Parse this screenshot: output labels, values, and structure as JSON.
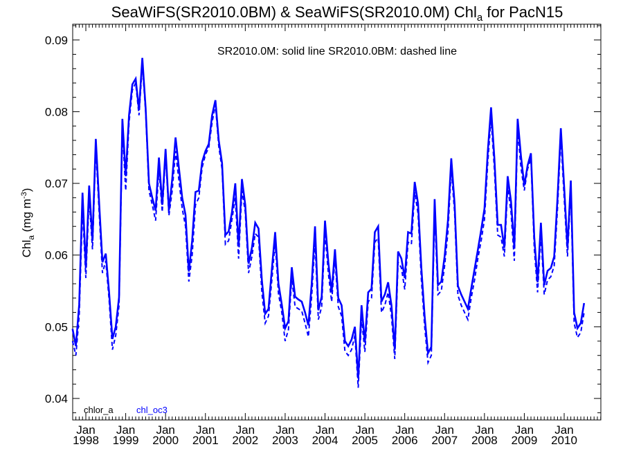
{
  "chart_data": {
    "type": "line",
    "title": "SeaWiFS(SR2010.0BM) & SeaWiFS(SR2010.0M)  Chl",
    "title_sub": "a",
    "title_suffix": " for PacN15",
    "annotation": "SR2010.0M: solid line   SR2010.0BM: dashed line",
    "ylabel": "Chl",
    "ylabel_sub": "a",
    "ylabel_units": " (mg m",
    "ylabel_sup": "-3",
    "ylabel_close": ")",
    "ylim": [
      0.037,
      0.0922
    ],
    "yticks": [
      "0.04",
      "0.05",
      "0.06",
      "0.07",
      "0.08",
      "0.09"
    ],
    "xlim": [
      1997.67,
      2010.92
    ],
    "xtick_month": "Jan",
    "xticks": [
      "1998",
      "1999",
      "2000",
      "2001",
      "2002",
      "2003",
      "2004",
      "2005",
      "2006",
      "2007",
      "2008",
      "2009",
      "2010"
    ],
    "legend": [
      "chlor_a",
      "chl_oc3"
    ],
    "legend_colors": [
      "#000000",
      "#0000ff"
    ],
    "line_color": "#0000ff",
    "x_start": "1997-09",
    "series": [
      {
        "name": "SR2010.0M",
        "style": "solid",
        "values": [
          0.0497,
          0.0473,
          0.0531,
          0.0687,
          0.0582,
          0.0697,
          0.062,
          0.0762,
          0.0673,
          0.059,
          0.0602,
          0.0548,
          0.0483,
          0.05,
          0.0541,
          0.079,
          0.071,
          0.0795,
          0.0838,
          0.0846,
          0.0802,
          0.0875,
          0.0805,
          0.07,
          0.068,
          0.0662,
          0.0736,
          0.067,
          0.0748,
          0.0662,
          0.0706,
          0.0764,
          0.0722,
          0.068,
          0.0656,
          0.0577,
          0.062,
          0.0688,
          0.069,
          0.073,
          0.0745,
          0.0755,
          0.0795,
          0.0816,
          0.076,
          0.0728,
          0.0628,
          0.0633,
          0.066,
          0.07,
          0.0612,
          0.0706,
          0.067,
          0.0588,
          0.061,
          0.0645,
          0.0637,
          0.0565,
          0.0518,
          0.0525,
          0.058,
          0.0632,
          0.056,
          0.0531,
          0.0498,
          0.0508,
          0.0583,
          0.0542,
          0.0538,
          0.0535,
          0.052,
          0.0502,
          0.056,
          0.064,
          0.0523,
          0.0542,
          0.0648,
          0.059,
          0.0548,
          0.0608,
          0.054,
          0.053,
          0.048,
          0.0473,
          0.0482,
          0.05,
          0.0428,
          0.053,
          0.0478,
          0.0548,
          0.0553,
          0.0632,
          0.064,
          0.0535,
          0.0545,
          0.0562,
          0.053,
          0.0468,
          0.0605,
          0.0595,
          0.0568,
          0.0632,
          0.063,
          0.0702,
          0.0672,
          0.0582,
          0.0514,
          0.0463,
          0.0472,
          0.0678,
          0.0558,
          0.0563,
          0.0598,
          0.0648,
          0.0735,
          0.0672,
          0.0557,
          0.0545,
          0.0535,
          0.0525,
          0.0553,
          0.058,
          0.0607,
          0.0635,
          0.0665,
          0.0745,
          0.0806,
          0.0735,
          0.0642,
          0.0642,
          0.061,
          0.071,
          0.0675,
          0.061,
          0.079,
          0.0738,
          0.0697,
          0.0725,
          0.0742,
          0.0625,
          0.0562,
          0.0645,
          0.0558,
          0.0578,
          0.0582,
          0.0598,
          0.068,
          0.0777,
          0.0695,
          0.061,
          0.0704,
          0.052,
          0.0498,
          0.0505,
          0.0533
        ]
      },
      {
        "name": "SR2010.0BM",
        "style": "dashed",
        "values": [
          0.048,
          0.046,
          0.0515,
          0.0665,
          0.0568,
          0.068,
          0.0608,
          0.075,
          0.066,
          0.0575,
          0.0592,
          0.0538,
          0.0468,
          0.0488,
          0.053,
          0.0775,
          0.069,
          0.0785,
          0.083,
          0.084,
          0.0795,
          0.0865,
          0.08,
          0.069,
          0.067,
          0.0648,
          0.072,
          0.066,
          0.074,
          0.0655,
          0.069,
          0.0745,
          0.0705,
          0.0665,
          0.064,
          0.0563,
          0.06,
          0.067,
          0.068,
          0.0722,
          0.074,
          0.075,
          0.0785,
          0.081,
          0.0752,
          0.072,
          0.0615,
          0.062,
          0.065,
          0.068,
          0.0595,
          0.069,
          0.066,
          0.0575,
          0.0598,
          0.063,
          0.0625,
          0.0548,
          0.0505,
          0.0515,
          0.0565,
          0.0618,
          0.0546,
          0.052,
          0.048,
          0.0496,
          0.0568,
          0.0528,
          0.0525,
          0.0522,
          0.0505,
          0.0486,
          0.0543,
          0.062,
          0.051,
          0.0528,
          0.0632,
          0.0575,
          0.0535,
          0.0595,
          0.0528,
          0.0515,
          0.0466,
          0.046,
          0.0468,
          0.0488,
          0.0415,
          0.0512,
          0.0465,
          0.0535,
          0.054,
          0.0618,
          0.0624,
          0.052,
          0.053,
          0.0548,
          0.0515,
          0.0455,
          0.059,
          0.0582,
          0.0552,
          0.0618,
          0.0615,
          0.0688,
          0.0658,
          0.0566,
          0.05,
          0.045,
          0.046,
          0.066,
          0.0545,
          0.055,
          0.0585,
          0.0632,
          0.072,
          0.066,
          0.0544,
          0.053,
          0.052,
          0.051,
          0.054,
          0.0565,
          0.0595,
          0.062,
          0.065,
          0.073,
          0.0792,
          0.072,
          0.0628,
          0.0625,
          0.0598,
          0.0695,
          0.066,
          0.0592,
          0.0775,
          0.0722,
          0.069,
          0.072,
          0.0735,
          0.061,
          0.0548,
          0.063,
          0.0545,
          0.0565,
          0.057,
          0.0585,
          0.0665,
          0.0765,
          0.068,
          0.0598,
          0.069,
          0.0505,
          0.0485,
          0.0492,
          0.052
        ]
      }
    ]
  }
}
